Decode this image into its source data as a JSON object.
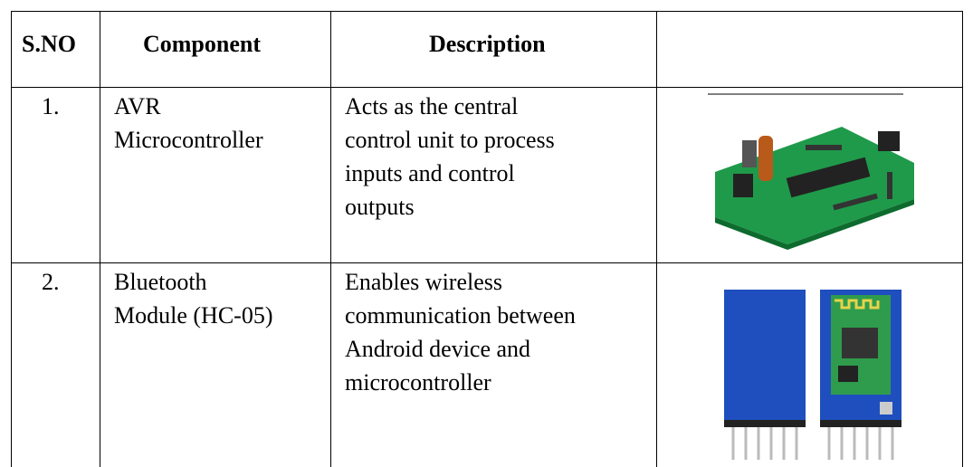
{
  "table": {
    "header": [
      "S.NO",
      "Component",
      "Description"
    ],
    "rows": [
      {
        "number": "1.",
        "component": [
          "AVR",
          "Microcontroller"
        ],
        "description": [
          "Acts as the central",
          "control unit to process",
          "inputs and control",
          "outputs"
        ]
      },
      {
        "number": "2.",
        "component": [
          "Bluetooth",
          "Module (HC-05)"
        ],
        "description": [
          "Enables wireless",
          "communication between",
          "Android device and",
          "microcontroller"
        ]
      }
    ]
  }
}
